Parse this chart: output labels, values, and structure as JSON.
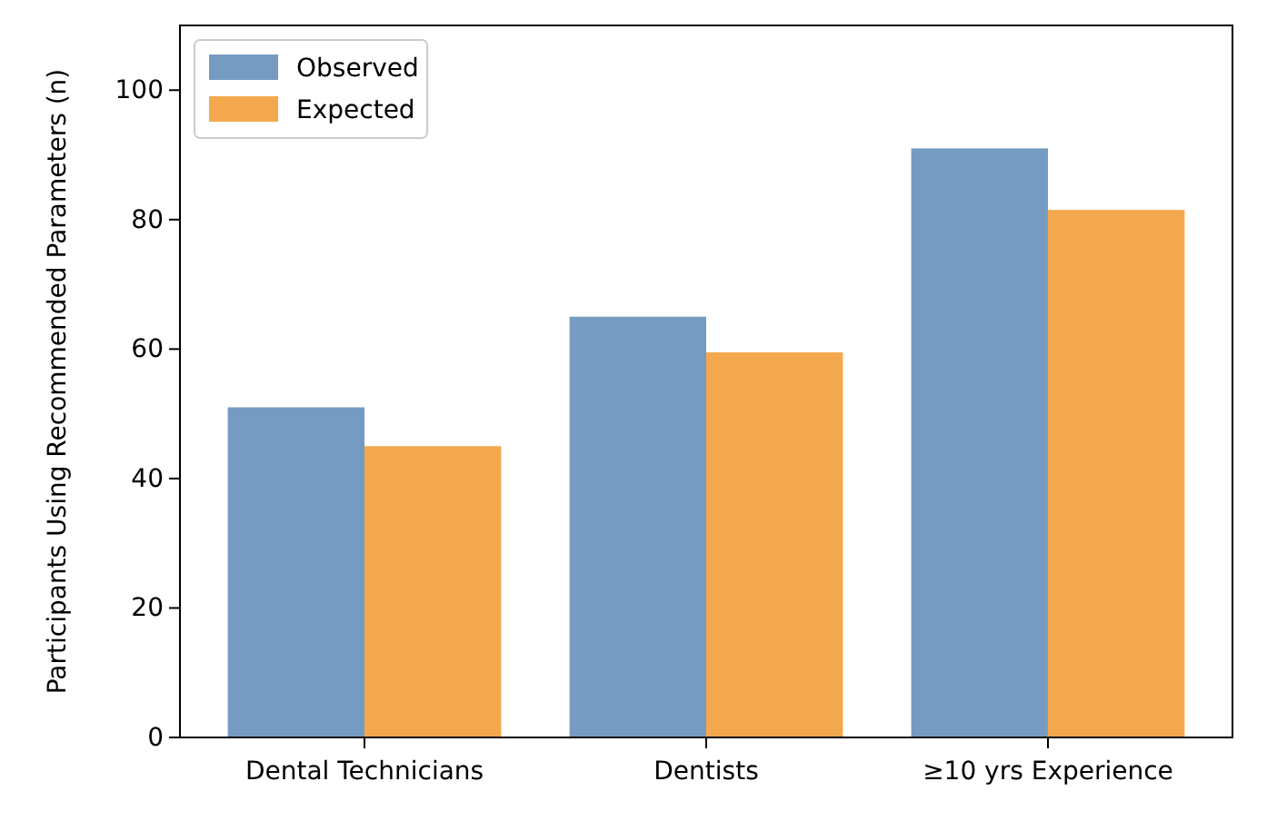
{
  "chart_data": {
    "type": "bar",
    "ylabel": "Participants Using Recommended Parameters (n)",
    "categories": [
      "Dental Technicians",
      "Dentists",
      "≥10 yrs Experience"
    ],
    "series": [
      {
        "name": "Observed",
        "color": "#759bc2",
        "values": [
          51,
          65,
          91
        ]
      },
      {
        "name": "Expected",
        "color": "#f3a84e",
        "values": [
          45,
          59.5,
          81.5
        ]
      }
    ],
    "ylim": [
      0,
      110
    ],
    "yticks": [
      0,
      20,
      40,
      60,
      80,
      100
    ],
    "legend": "top left",
    "grid": false
  }
}
